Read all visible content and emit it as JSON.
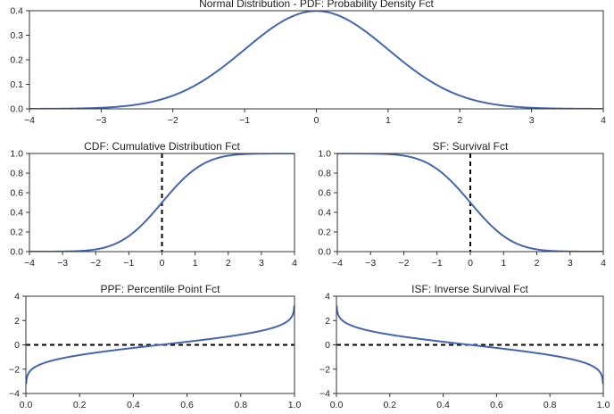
{
  "chart_data": [
    {
      "id": "pdf",
      "type": "line",
      "title": "Normal Distribution - PDF: Probability Density Fct",
      "function": "pdf",
      "xlim": [
        -4,
        4
      ],
      "ylim": [
        0,
        0.4
      ],
      "xticks": [
        -4,
        -3,
        -2,
        -1,
        0,
        1,
        2,
        3,
        4
      ],
      "xtick_labels": [
        "−4",
        "−3",
        "−2",
        "−1",
        "0",
        "1",
        "2",
        "3",
        "4"
      ],
      "yticks": [
        0,
        0.1,
        0.2,
        0.3,
        0.4
      ],
      "ytick_labels": [
        "0.0",
        "0.1",
        "0.2",
        "0.3",
        "0.4"
      ],
      "color": "#4466b0",
      "reference_line": null
    },
    {
      "id": "cdf",
      "type": "line",
      "title": "CDF: Cumulative Distribution Fct",
      "function": "cdf",
      "xlim": [
        -4,
        4
      ],
      "ylim": [
        0,
        1
      ],
      "xticks": [
        -4,
        -3,
        -2,
        -1,
        0,
        1,
        2,
        3,
        4
      ],
      "xtick_labels": [
        "−4",
        "−3",
        "−2",
        "−1",
        "0",
        "1",
        "2",
        "3",
        "4"
      ],
      "yticks": [
        0,
        0.2,
        0.4,
        0.6,
        0.8,
        1.0
      ],
      "ytick_labels": [
        "0.0",
        "0.2",
        "0.4",
        "0.6",
        "0.8",
        "1.0"
      ],
      "color": "#4466b0",
      "reference_line": {
        "orientation": "vertical",
        "value": 0
      }
    },
    {
      "id": "sf",
      "type": "line",
      "title": "SF: Survival Fct",
      "function": "sf",
      "xlim": [
        -4,
        4
      ],
      "ylim": [
        0,
        1
      ],
      "xticks": [
        -4,
        -3,
        -2,
        -1,
        0,
        1,
        2,
        3,
        4
      ],
      "xtick_labels": [
        "−4",
        "−3",
        "−2",
        "−1",
        "0",
        "1",
        "2",
        "3",
        "4"
      ],
      "yticks": [
        0,
        0.2,
        0.4,
        0.6,
        0.8,
        1.0
      ],
      "ytick_labels": [
        "0.0",
        "0.2",
        "0.4",
        "0.6",
        "0.8",
        "1.0"
      ],
      "color": "#4466b0",
      "reference_line": {
        "orientation": "vertical",
        "value": 0
      }
    },
    {
      "id": "ppf",
      "type": "line",
      "title": "PPF: Percentile Point Fct",
      "function": "ppf",
      "xlim": [
        0,
        1
      ],
      "ylim": [
        -4,
        4
      ],
      "xticks": [
        0,
        0.2,
        0.4,
        0.6,
        0.8,
        1.0
      ],
      "xtick_labels": [
        "0.0",
        "0.2",
        "0.4",
        "0.6",
        "0.8",
        "1.0"
      ],
      "yticks": [
        -4,
        -2,
        0,
        2,
        4
      ],
      "ytick_labels": [
        "−4",
        "−2",
        "0",
        "2",
        "4"
      ],
      "color": "#4466b0",
      "reference_line": {
        "orientation": "horizontal",
        "value": 0
      }
    },
    {
      "id": "isf",
      "type": "line",
      "title": "ISF: Inverse Survival Fct",
      "function": "isf",
      "xlim": [
        0,
        1
      ],
      "ylim": [
        -4,
        4
      ],
      "xticks": [
        0,
        0.2,
        0.4,
        0.6,
        0.8,
        1.0
      ],
      "xtick_labels": [
        "0.0",
        "0.2",
        "0.4",
        "0.6",
        "0.8",
        "1.0"
      ],
      "yticks": [
        -4,
        -2,
        0,
        2,
        4
      ],
      "ytick_labels": [
        "−4",
        "−2",
        "0",
        "2",
        "4"
      ],
      "color": "#4466b0",
      "reference_line": {
        "orientation": "horizontal",
        "value": 0
      }
    }
  ]
}
